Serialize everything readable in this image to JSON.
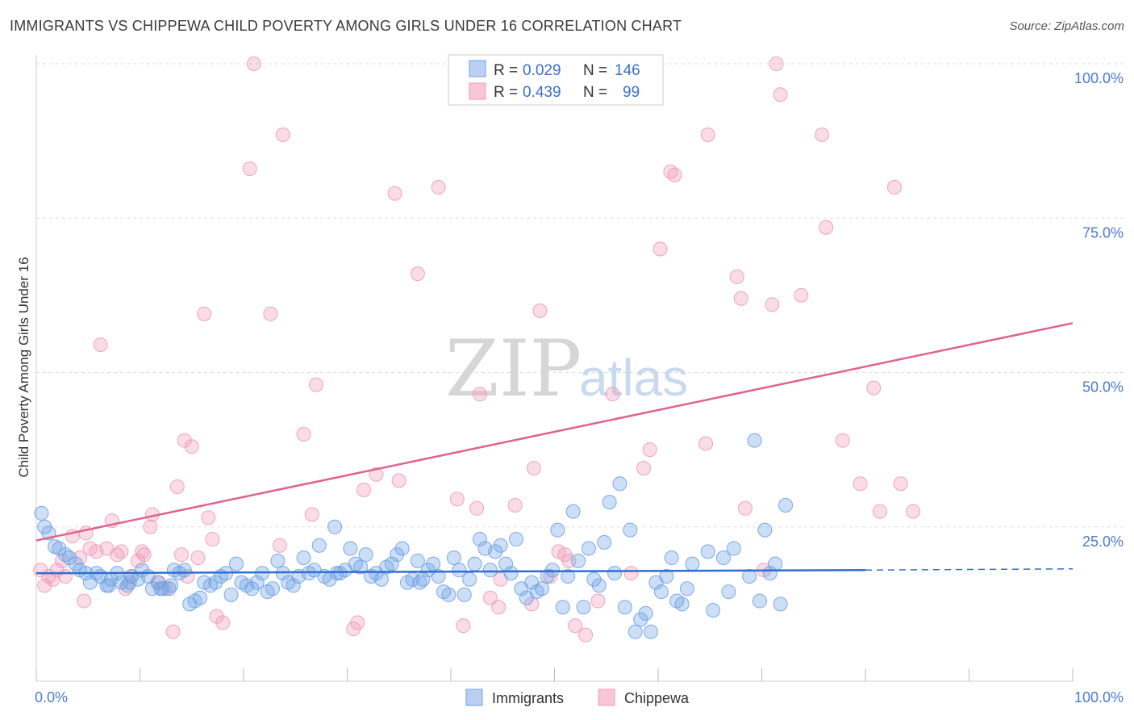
{
  "header": {
    "title": "IMMIGRANTS VS CHIPPEWA CHILD POVERTY AMONG GIRLS UNDER 16 CORRELATION CHART",
    "source": "Source: ZipAtlas.com"
  },
  "watermark": {
    "zip": "ZIP",
    "atlas": "atlas"
  },
  "legend": {
    "rows": [
      {
        "r_label": "R = ",
        "r_value": "0.029",
        "n_label": "N = ",
        "n_value": "146"
      },
      {
        "r_label": "R = ",
        "r_value": "0.439",
        "n_label": "N = ",
        "n_value": "99"
      }
    ]
  },
  "bottom_legend": [
    "Immigrants",
    "Chippewa"
  ],
  "chart_data": {
    "type": "scatter",
    "title": "IMMIGRANTS VS CHIPPEWA CHILD POVERTY AMONG GIRLS UNDER 16 CORRELATION CHART",
    "xlabel": "",
    "ylabel": "Child Poverty Among Girls Under 16",
    "xlim": [
      0,
      100
    ],
    "ylim": [
      0,
      100
    ],
    "x_tick_labels": [
      "0.0%",
      "100.0%"
    ],
    "y_ticks": [
      25,
      50,
      75,
      100
    ],
    "y_tick_labels": [
      "25.0%",
      "50.0%",
      "75.0%",
      "100.0%"
    ],
    "grid": true,
    "colors": {
      "Immigrants": "#6fa2e6",
      "Chippewa": "#f09ab8",
      "Immigrants_line": "#2f6fd0",
      "Chippewa_line": "#e0628e"
    },
    "series": [
      {
        "name": "Immigrants",
        "R": 0.029,
        "N": 146,
        "trend": {
          "x0": 0,
          "y0": 17.5,
          "x1": 80,
          "y1": 18.0,
          "dash_to_x": 100,
          "dash_to_y": 18.2
        },
        "points": [
          [
            0.5,
            27.2
          ],
          [
            0.8,
            25.0
          ],
          [
            1.2,
            24.0
          ],
          [
            1.8,
            21.8
          ],
          [
            2.2,
            21.5
          ],
          [
            2.8,
            20.5
          ],
          [
            3.2,
            20.0
          ],
          [
            3.8,
            19.0
          ],
          [
            4.2,
            18.0
          ],
          [
            4.8,
            17.5
          ],
          [
            5.2,
            16.0
          ],
          [
            5.8,
            17.5
          ],
          [
            6.2,
            17.0
          ],
          [
            6.8,
            15.5
          ],
          [
            7.2,
            16.5
          ],
          [
            7.8,
            17.5
          ],
          [
            8.2,
            16.0
          ],
          [
            8.8,
            15.5
          ],
          [
            9.2,
            17.0
          ],
          [
            9.8,
            16.5
          ],
          [
            10.2,
            18.0
          ],
          [
            10.8,
            17.0
          ],
          [
            11.2,
            15.0
          ],
          [
            11.8,
            16.0
          ],
          [
            12.2,
            15.0
          ],
          [
            12.8,
            15.0
          ],
          [
            13.3,
            18.0
          ],
          [
            13.8,
            17.5
          ],
          [
            14.3,
            18.0
          ],
          [
            14.8,
            12.5
          ],
          [
            15.3,
            13.0
          ],
          [
            15.8,
            13.5
          ],
          [
            16.2,
            16.0
          ],
          [
            16.8,
            15.5
          ],
          [
            17.3,
            16.0
          ],
          [
            17.8,
            17.0
          ],
          [
            18.3,
            17.5
          ],
          [
            18.8,
            14.0
          ],
          [
            19.3,
            19.0
          ],
          [
            19.8,
            16.0
          ],
          [
            20.3,
            15.5
          ],
          [
            20.8,
            15.0
          ],
          [
            21.3,
            16.0
          ],
          [
            21.8,
            17.5
          ],
          [
            22.3,
            14.5
          ],
          [
            22.8,
            15.0
          ],
          [
            23.3,
            19.5
          ],
          [
            23.8,
            17.5
          ],
          [
            24.3,
            16.0
          ],
          [
            24.8,
            15.5
          ],
          [
            25.3,
            17.0
          ],
          [
            25.8,
            20.0
          ],
          [
            26.3,
            17.5
          ],
          [
            26.8,
            18.0
          ],
          [
            27.3,
            22.0
          ],
          [
            27.8,
            17.0
          ],
          [
            28.3,
            16.5
          ],
          [
            28.8,
            25.0
          ],
          [
            29.3,
            17.5
          ],
          [
            29.8,
            18.0
          ],
          [
            30.3,
            21.5
          ],
          [
            30.8,
            19.0
          ],
          [
            31.3,
            18.5
          ],
          [
            31.8,
            20.5
          ],
          [
            32.3,
            17.0
          ],
          [
            32.8,
            17.5
          ],
          [
            33.3,
            16.5
          ],
          [
            33.8,
            18.5
          ],
          [
            34.3,
            19.0
          ],
          [
            34.8,
            20.5
          ],
          [
            35.3,
            21.5
          ],
          [
            35.8,
            16.0
          ],
          [
            36.3,
            16.5
          ],
          [
            36.8,
            19.5
          ],
          [
            37.3,
            16.5
          ],
          [
            37.8,
            18.0
          ],
          [
            38.3,
            19.0
          ],
          [
            38.8,
            17.0
          ],
          [
            39.3,
            14.5
          ],
          [
            39.8,
            14.0
          ],
          [
            40.3,
            20.0
          ],
          [
            40.8,
            18.0
          ],
          [
            41.3,
            14.0
          ],
          [
            41.8,
            16.5
          ],
          [
            42.3,
            19.0
          ],
          [
            42.8,
            23.0
          ],
          [
            43.3,
            21.5
          ],
          [
            43.8,
            18.0
          ],
          [
            44.3,
            21.0
          ],
          [
            44.8,
            22.0
          ],
          [
            45.3,
            19.0
          ],
          [
            45.8,
            17.5
          ],
          [
            46.3,
            23.0
          ],
          [
            46.8,
            15.0
          ],
          [
            47.3,
            13.5
          ],
          [
            47.8,
            16.0
          ],
          [
            48.3,
            14.5
          ],
          [
            48.8,
            15.0
          ],
          [
            49.3,
            17.0
          ],
          [
            49.8,
            18.0
          ],
          [
            50.3,
            24.5
          ],
          [
            50.8,
            12.0
          ],
          [
            51.3,
            17.0
          ],
          [
            51.8,
            27.5
          ],
          [
            52.3,
            19.5
          ],
          [
            52.8,
            12.0
          ],
          [
            53.3,
            21.5
          ],
          [
            53.8,
            16.5
          ],
          [
            54.3,
            15.5
          ],
          [
            54.8,
            22.5
          ],
          [
            55.3,
            29.0
          ],
          [
            55.8,
            17.5
          ],
          [
            56.3,
            32.0
          ],
          [
            56.8,
            12.0
          ],
          [
            57.3,
            24.5
          ],
          [
            57.8,
            8.0
          ],
          [
            58.3,
            10.0
          ],
          [
            58.8,
            11.0
          ],
          [
            59.3,
            8.0
          ],
          [
            59.8,
            16.0
          ],
          [
            60.3,
            14.5
          ],
          [
            60.8,
            17.0
          ],
          [
            61.3,
            20.0
          ],
          [
            61.8,
            13.0
          ],
          [
            62.3,
            12.5
          ],
          [
            62.8,
            15.0
          ],
          [
            63.3,
            19.0
          ],
          [
            64.8,
            21.0
          ],
          [
            65.3,
            11.5
          ],
          [
            66.3,
            20.0
          ],
          [
            66.8,
            14.5
          ],
          [
            67.3,
            21.5
          ],
          [
            68.8,
            17.0
          ],
          [
            69.3,
            39.0
          ],
          [
            69.8,
            13.0
          ],
          [
            70.3,
            24.5
          ],
          [
            70.8,
            17.5
          ],
          [
            71.3,
            19.0
          ],
          [
            71.8,
            12.5
          ],
          [
            72.3,
            28.5
          ],
          [
            7.0,
            15.5
          ],
          [
            9.0,
            16.0
          ],
          [
            12.0,
            15.0
          ],
          [
            13.0,
            15.5
          ],
          [
            29.0,
            17.5
          ],
          [
            37.0,
            16.0
          ]
        ]
      },
      {
        "name": "Chippewa",
        "R": 0.439,
        "N": 99,
        "trend": {
          "x0": 0,
          "y0": 22.8,
          "x1": 100,
          "y1": 58.0
        },
        "points": [
          [
            0.4,
            18.0
          ],
          [
            0.8,
            15.5
          ],
          [
            1.2,
            17.0
          ],
          [
            1.6,
            16.5
          ],
          [
            2.0,
            18.0
          ],
          [
            2.5,
            19.5
          ],
          [
            2.8,
            17.0
          ],
          [
            3.5,
            23.5
          ],
          [
            4.2,
            20.0
          ],
          [
            4.6,
            13.0
          ],
          [
            4.8,
            24.0
          ],
          [
            5.2,
            21.5
          ],
          [
            5.8,
            21.0
          ],
          [
            6.2,
            54.5
          ],
          [
            6.8,
            21.5
          ],
          [
            7.3,
            26.0
          ],
          [
            7.8,
            20.5
          ],
          [
            8.2,
            21.0
          ],
          [
            8.6,
            15.0
          ],
          [
            9.2,
            17.0
          ],
          [
            9.8,
            19.5
          ],
          [
            10.2,
            21.0
          ],
          [
            10.4,
            20.5
          ],
          [
            11.0,
            25.0
          ],
          [
            11.2,
            27.0
          ],
          [
            11.7,
            16.0
          ],
          [
            12.5,
            15.0
          ],
          [
            13.2,
            8.0
          ],
          [
            13.6,
            31.5
          ],
          [
            14.0,
            20.5
          ],
          [
            14.3,
            39.0
          ],
          [
            14.6,
            17.0
          ],
          [
            15.0,
            38.0
          ],
          [
            15.6,
            20.0
          ],
          [
            16.2,
            59.5
          ],
          [
            16.6,
            26.5
          ],
          [
            17.0,
            23.0
          ],
          [
            17.4,
            10.5
          ],
          [
            18.0,
            9.5
          ],
          [
            20.6,
            83.0
          ],
          [
            21.0,
            100.0
          ],
          [
            22.6,
            59.5
          ],
          [
            23.5,
            22.0
          ],
          [
            23.8,
            88.5
          ],
          [
            25.8,
            40.0
          ],
          [
            26.6,
            27.0
          ],
          [
            27.0,
            48.0
          ],
          [
            30.6,
            8.5
          ],
          [
            31.0,
            9.5
          ],
          [
            31.6,
            31.0
          ],
          [
            32.8,
            33.5
          ],
          [
            34.6,
            79.0
          ],
          [
            35.0,
            32.5
          ],
          [
            36.8,
            66.0
          ],
          [
            38.8,
            80.0
          ],
          [
            40.6,
            29.5
          ],
          [
            41.2,
            9.0
          ],
          [
            42.5,
            28.0
          ],
          [
            42.8,
            46.5
          ],
          [
            43.8,
            13.5
          ],
          [
            44.6,
            12.0
          ],
          [
            44.8,
            16.5
          ],
          [
            46.2,
            28.5
          ],
          [
            47.8,
            12.5
          ],
          [
            48.0,
            34.5
          ],
          [
            48.6,
            60.0
          ],
          [
            49.6,
            17.0
          ],
          [
            50.4,
            21.0
          ],
          [
            51.0,
            20.5
          ],
          [
            51.4,
            19.5
          ],
          [
            52.0,
            9.0
          ],
          [
            53.0,
            7.5
          ],
          [
            54.2,
            13.0
          ],
          [
            55.6,
            46.5
          ],
          [
            57.4,
            17.5
          ],
          [
            58.6,
            34.5
          ],
          [
            59.2,
            37.5
          ],
          [
            60.2,
            70.0
          ],
          [
            61.2,
            82.5
          ],
          [
            61.6,
            82.0
          ],
          [
            64.6,
            38.5
          ],
          [
            64.8,
            88.5
          ],
          [
            67.6,
            65.5
          ],
          [
            68.0,
            62.0
          ],
          [
            68.4,
            28.0
          ],
          [
            70.2,
            18.0
          ],
          [
            71.0,
            61.0
          ],
          [
            71.4,
            100.0
          ],
          [
            71.8,
            95.0
          ],
          [
            73.8,
            62.5
          ],
          [
            75.8,
            88.5
          ],
          [
            76.2,
            73.5
          ],
          [
            77.8,
            39.0
          ],
          [
            79.5,
            32.0
          ],
          [
            80.8,
            47.5
          ],
          [
            81.4,
            27.5
          ],
          [
            82.8,
            80.0
          ],
          [
            83.4,
            32.0
          ],
          [
            84.6,
            27.5
          ]
        ]
      }
    ]
  }
}
